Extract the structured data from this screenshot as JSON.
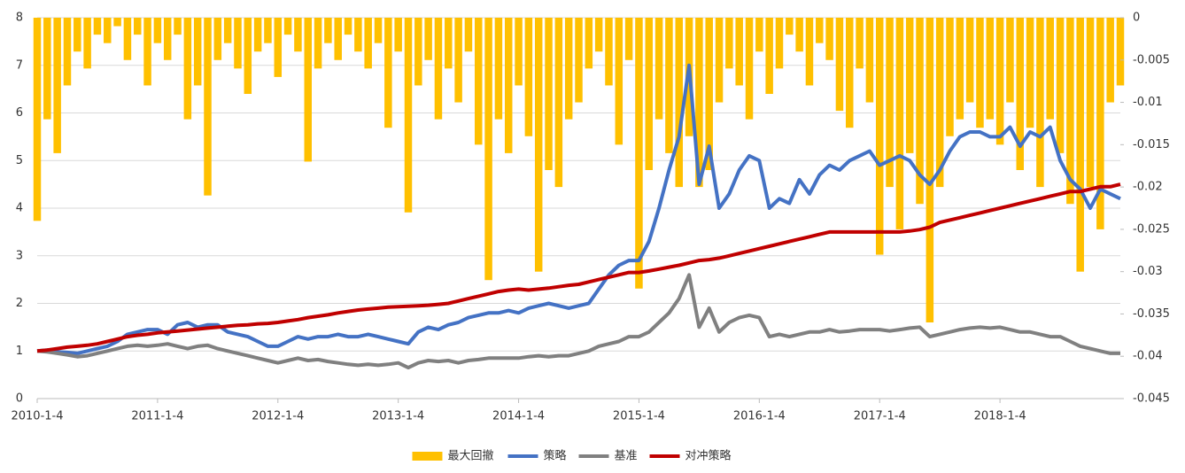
{
  "chart_data": {
    "type": "line",
    "categories": [
      "2010-1-4",
      null,
      null,
      null,
      null,
      null,
      null,
      null,
      null,
      null,
      null,
      null,
      "2011-1-4",
      null,
      null,
      null,
      null,
      null,
      null,
      null,
      null,
      null,
      null,
      null,
      "2012-1-4",
      null,
      null,
      null,
      null,
      null,
      null,
      null,
      null,
      null,
      null,
      null,
      "2013-1-4",
      null,
      null,
      null,
      null,
      null,
      null,
      null,
      null,
      null,
      null,
      null,
      "2014-1-4",
      null,
      null,
      null,
      null,
      null,
      null,
      null,
      null,
      null,
      null,
      null,
      "2015-1-4",
      null,
      null,
      null,
      null,
      null,
      null,
      null,
      null,
      null,
      null,
      null,
      "2016-1-4",
      null,
      null,
      null,
      null,
      null,
      null,
      null,
      null,
      null,
      null,
      null,
      "2017-1-4",
      null,
      null,
      null,
      null,
      null,
      null,
      null,
      null,
      null,
      null,
      null,
      "2018-1-4",
      null,
      null,
      null,
      null,
      null,
      null,
      null,
      null,
      null,
      null,
      null,
      null
    ],
    "series": [
      {
        "name": "最大回撤",
        "type": "bar",
        "axis": "y2",
        "color": "#ffc000",
        "values": [
          -0.024,
          -0.012,
          -0.016,
          -0.008,
          -0.004,
          -0.006,
          -0.002,
          -0.003,
          -0.001,
          -0.005,
          -0.002,
          -0.008,
          -0.003,
          -0.005,
          -0.002,
          -0.012,
          -0.008,
          -0.021,
          -0.005,
          -0.003,
          -0.006,
          -0.009,
          -0.004,
          -0.003,
          -0.007,
          -0.002,
          -0.004,
          -0.017,
          -0.006,
          -0.003,
          -0.005,
          -0.002,
          -0.004,
          -0.006,
          -0.003,
          -0.013,
          -0.004,
          -0.023,
          -0.008,
          -0.005,
          -0.012,
          -0.006,
          -0.01,
          -0.004,
          -0.015,
          -0.031,
          -0.012,
          -0.016,
          -0.008,
          -0.014,
          -0.03,
          -0.018,
          -0.02,
          -0.012,
          -0.01,
          -0.006,
          -0.004,
          -0.008,
          -0.015,
          -0.005,
          -0.032,
          -0.018,
          -0.012,
          -0.016,
          -0.02,
          -0.014,
          -0.02,
          -0.018,
          -0.01,
          -0.006,
          -0.008,
          -0.012,
          -0.004,
          -0.009,
          -0.006,
          -0.002,
          -0.004,
          -0.008,
          -0.003,
          -0.005,
          -0.011,
          -0.013,
          -0.006,
          -0.01,
          -0.028,
          -0.02,
          -0.025,
          -0.016,
          -0.022,
          -0.036,
          -0.02,
          -0.014,
          -0.012,
          -0.01,
          -0.013,
          -0.012,
          -0.015,
          -0.01,
          -0.018,
          -0.013,
          -0.02,
          -0.012,
          -0.016,
          -0.022,
          -0.03,
          -0.02,
          -0.025,
          -0.01,
          -0.008
        ]
      },
      {
        "name": "策略",
        "type": "line",
        "color": "#4472c4",
        "values": [
          1.0,
          1.02,
          0.98,
          0.97,
          0.95,
          1.0,
          1.05,
          1.1,
          1.2,
          1.35,
          1.4,
          1.45,
          1.45,
          1.35,
          1.55,
          1.6,
          1.5,
          1.55,
          1.55,
          1.4,
          1.35,
          1.3,
          1.2,
          1.1,
          1.1,
          1.2,
          1.3,
          1.25,
          1.3,
          1.3,
          1.35,
          1.3,
          1.3,
          1.35,
          1.3,
          1.25,
          1.2,
          1.15,
          1.4,
          1.5,
          1.45,
          1.55,
          1.6,
          1.7,
          1.75,
          1.8,
          1.8,
          1.85,
          1.8,
          1.9,
          1.95,
          2.0,
          1.95,
          1.9,
          1.95,
          2.0,
          2.3,
          2.6,
          2.8,
          2.9,
          2.9,
          3.3,
          4.0,
          4.8,
          5.5,
          7.0,
          4.5,
          5.3,
          4.0,
          4.3,
          4.8,
          5.1,
          5.0,
          4.0,
          4.2,
          4.1,
          4.6,
          4.3,
          4.7,
          4.9,
          4.8,
          5.0,
          5.1,
          5.2,
          4.9,
          5.0,
          5.1,
          5.0,
          4.7,
          4.5,
          4.8,
          5.2,
          5.5,
          5.6,
          5.6,
          5.5,
          5.5,
          5.7,
          5.3,
          5.6,
          5.5,
          5.7,
          5.0,
          4.6,
          4.4,
          4.0,
          4.4,
          4.3,
          4.2
        ]
      },
      {
        "name": "基准",
        "type": "line",
        "color": "#808080",
        "values": [
          1.0,
          0.98,
          0.95,
          0.92,
          0.88,
          0.9,
          0.95,
          1.0,
          1.05,
          1.1,
          1.12,
          1.1,
          1.12,
          1.15,
          1.1,
          1.05,
          1.1,
          1.12,
          1.05,
          1.0,
          0.95,
          0.9,
          0.85,
          0.8,
          0.75,
          0.8,
          0.85,
          0.8,
          0.82,
          0.78,
          0.75,
          0.72,
          0.7,
          0.72,
          0.7,
          0.72,
          0.75,
          0.65,
          0.75,
          0.8,
          0.78,
          0.8,
          0.75,
          0.8,
          0.82,
          0.85,
          0.85,
          0.85,
          0.85,
          0.88,
          0.9,
          0.88,
          0.9,
          0.9,
          0.95,
          1.0,
          1.1,
          1.15,
          1.2,
          1.3,
          1.3,
          1.4,
          1.6,
          1.8,
          2.1,
          2.6,
          1.5,
          1.9,
          1.4,
          1.6,
          1.7,
          1.75,
          1.7,
          1.3,
          1.35,
          1.3,
          1.35,
          1.4,
          1.4,
          1.45,
          1.4,
          1.42,
          1.45,
          1.45,
          1.45,
          1.42,
          1.45,
          1.48,
          1.5,
          1.3,
          1.35,
          1.4,
          1.45,
          1.48,
          1.5,
          1.48,
          1.5,
          1.45,
          1.4,
          1.4,
          1.35,
          1.3,
          1.3,
          1.2,
          1.1,
          1.05,
          1.0,
          0.95,
          0.95
        ]
      },
      {
        "name": "对冲策略",
        "type": "line",
        "color": "#c00000",
        "values": [
          1.0,
          1.02,
          1.05,
          1.08,
          1.1,
          1.12,
          1.15,
          1.2,
          1.25,
          1.3,
          1.33,
          1.35,
          1.38,
          1.4,
          1.42,
          1.44,
          1.46,
          1.48,
          1.5,
          1.52,
          1.54,
          1.55,
          1.57,
          1.58,
          1.6,
          1.63,
          1.66,
          1.7,
          1.73,
          1.76,
          1.8,
          1.83,
          1.86,
          1.88,
          1.9,
          1.92,
          1.93,
          1.94,
          1.95,
          1.96,
          1.98,
          2.0,
          2.05,
          2.1,
          2.15,
          2.2,
          2.25,
          2.28,
          2.3,
          2.28,
          2.3,
          2.32,
          2.35,
          2.38,
          2.4,
          2.45,
          2.5,
          2.55,
          2.6,
          2.65,
          2.65,
          2.68,
          2.72,
          2.76,
          2.8,
          2.85,
          2.9,
          2.92,
          2.95,
          3.0,
          3.05,
          3.1,
          3.15,
          3.2,
          3.25,
          3.3,
          3.35,
          3.4,
          3.45,
          3.5,
          3.5,
          3.5,
          3.5,
          3.5,
          3.5,
          3.5,
          3.5,
          3.52,
          3.55,
          3.6,
          3.7,
          3.75,
          3.8,
          3.85,
          3.9,
          3.95,
          4.0,
          4.05,
          4.1,
          4.15,
          4.2,
          4.25,
          4.3,
          4.35,
          4.35,
          4.4,
          4.45,
          4.45,
          4.5
        ]
      }
    ],
    "ylim": [
      0,
      8
    ],
    "yticks": [
      0,
      1,
      2,
      3,
      4,
      5,
      6,
      7,
      8
    ],
    "y2lim": [
      0,
      -0.045
    ],
    "y2ticks": [
      0,
      -0.005,
      -0.01,
      -0.015,
      -0.02,
      -0.025,
      -0.03,
      -0.035,
      -0.04,
      -0.045
    ],
    "grid": true,
    "legend": "bottom"
  }
}
